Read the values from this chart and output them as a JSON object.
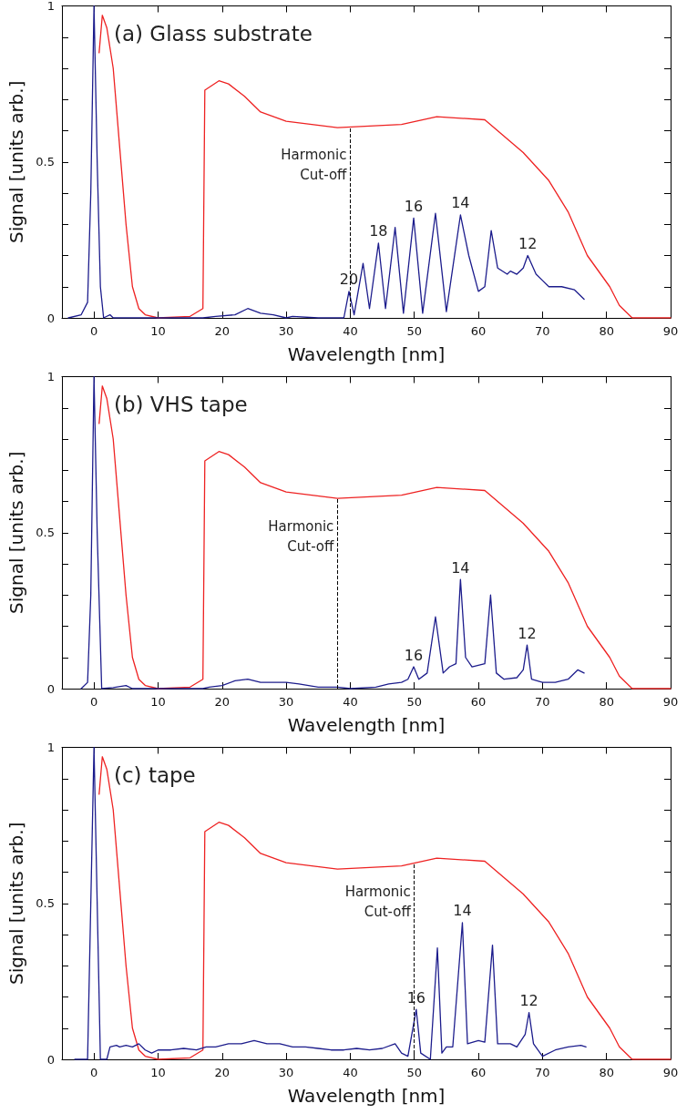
{
  "chart_data": [
    {
      "type": "line",
      "title": "(a) Glass substrate",
      "xlabel": "Wavelength [nm]",
      "ylabel": "Signal [units arb.]",
      "xlim": [
        -5,
        90
      ],
      "xticks": [
        0,
        10,
        20,
        30,
        40,
        50,
        60,
        70,
        80,
        90
      ],
      "ylim": [
        0,
        1
      ],
      "yticks": [
        0,
        {
          "value": 0.1,
          "label": null
        },
        {
          "value": 0.2,
          "label": null
        },
        {
          "value": 0.3,
          "label": null
        },
        {
          "value": 0.4,
          "label": null
        },
        0.5,
        {
          "value": 0.6,
          "label": null
        },
        {
          "value": 0.7,
          "label": null
        },
        {
          "value": 0.8,
          "label": null
        },
        {
          "value": 0.9,
          "label": null
        },
        1
      ],
      "marker": "none",
      "line_style": "solid",
      "series": [
        {
          "color": "#ee2222",
          "x": [
            0.8,
            1.3,
            2,
            3,
            4,
            5,
            6,
            7,
            8,
            10,
            15,
            17,
            17.3,
            19.5,
            21,
            23.5,
            26,
            30,
            38,
            48,
            53.5,
            61,
            63,
            67,
            71,
            74,
            77,
            80.5,
            82,
            84,
            90
          ],
          "values": [
            0.85,
            0.97,
            0.93,
            0.8,
            0.55,
            0.3,
            0.1,
            0.03,
            0.01,
            0,
            0.005,
            0.03,
            0.73,
            0.76,
            0.75,
            0.71,
            0.66,
            0.63,
            0.61,
            0.62,
            0.645,
            0.635,
            0.6,
            0.53,
            0.44,
            0.34,
            0.2,
            0.1,
            0.04,
            0,
            0
          ]
        },
        {
          "color": "#1c1c8c",
          "x": [
            -4,
            -2,
            -1,
            -0.5,
            0,
            0.5,
            1,
            1.5,
            2,
            2.5,
            3,
            17,
            19,
            22,
            24,
            26,
            28,
            30,
            31,
            35,
            39,
            39.8,
            40.6,
            42,
            43,
            44.4,
            45.5,
            47,
            48.3,
            49.9,
            51.3,
            53.3,
            55,
            57.2,
            58.5,
            60,
            61,
            62,
            63,
            64.5,
            65,
            66,
            67,
            67.7,
            69,
            70,
            71,
            72,
            73,
            75,
            76.5
          ],
          "values": [
            0,
            0.01,
            0.05,
            0.4,
            1,
            0.5,
            0.1,
            0,
            0.005,
            0.01,
            0,
            0,
            0.005,
            0.01,
            0.03,
            0.015,
            0.01,
            0,
            0.005,
            0,
            0,
            0.085,
            0.01,
            0.175,
            0.03,
            0.24,
            0.03,
            0.29,
            0.015,
            0.32,
            0.015,
            0.335,
            0.02,
            0.33,
            0.2,
            0.085,
            0.1,
            0.28,
            0.16,
            0.14,
            0.15,
            0.14,
            0.16,
            0.2,
            0.14,
            0.12,
            0.1,
            0.1,
            0.1,
            0.09,
            0.06
          ]
        }
      ],
      "ref_lines": [
        {
          "axis": "x",
          "value": 40,
          "label": "Harmonic\nCut-off",
          "line_style": "dashed",
          "color": "#000000"
        }
      ],
      "annotations": [
        {
          "text": "20",
          "x": 39.8,
          "y": 0.085
        },
        {
          "text": "18",
          "x": 44.4,
          "y": 0.24
        },
        {
          "text": "16",
          "x": 49.9,
          "y": 0.32
        },
        {
          "text": "14",
          "x": 57.2,
          "y": 0.33
        },
        {
          "text": "12",
          "x": 67.7,
          "y": 0.2
        }
      ]
    },
    {
      "type": "line",
      "title": "(b) VHS tape",
      "xlabel": "Wavelength [nm]",
      "ylabel": "Signal [units arb.]",
      "xlim": [
        -5,
        90
      ],
      "xticks": [
        0,
        10,
        20,
        30,
        40,
        50,
        60,
        70,
        80,
        90
      ],
      "ylim": [
        0,
        1
      ],
      "yticks": [
        0,
        {
          "value": 0.1,
          "label": null
        },
        {
          "value": 0.2,
          "label": null
        },
        {
          "value": 0.3,
          "label": null
        },
        {
          "value": 0.4,
          "label": null
        },
        0.5,
        {
          "value": 0.6,
          "label": null
        },
        {
          "value": 0.7,
          "label": null
        },
        {
          "value": 0.8,
          "label": null
        },
        {
          "value": 0.9,
          "label": null
        },
        1
      ],
      "marker": "none",
      "line_style": "solid",
      "series": [
        {
          "color": "#ee2222",
          "x": [
            0.8,
            1.3,
            2,
            3,
            4,
            5,
            6,
            7,
            8,
            10,
            15,
            17,
            17.3,
            19.5,
            21,
            23.5,
            26,
            30,
            38,
            48,
            53.5,
            61,
            63,
            67,
            71,
            74,
            77,
            80.5,
            82,
            84,
            90
          ],
          "values": [
            0.85,
            0.97,
            0.93,
            0.8,
            0.55,
            0.3,
            0.1,
            0.03,
            0.01,
            0,
            0.005,
            0.03,
            0.73,
            0.76,
            0.75,
            0.71,
            0.66,
            0.63,
            0.61,
            0.62,
            0.645,
            0.635,
            0.6,
            0.53,
            0.44,
            0.34,
            0.2,
            0.1,
            0.04,
            0,
            0
          ]
        },
        {
          "color": "#1c1c8c",
          "x": [
            -2,
            -1,
            -0.5,
            0,
            0.5,
            1.2,
            3,
            5,
            6,
            17,
            18,
            20,
            22,
            24,
            26,
            28,
            30,
            32,
            35,
            38,
            40,
            44,
            46,
            48,
            49,
            49.9,
            50.7,
            52,
            53.3,
            54.5,
            55.5,
            56.5,
            57.2,
            58,
            59,
            60,
            61,
            61.9,
            62.8,
            64,
            66,
            67,
            67.6,
            68.3,
            70,
            72,
            74,
            75.5,
            76.5
          ],
          "values": [
            0,
            0.02,
            0.3,
            1,
            0.5,
            0,
            0.003,
            0.01,
            0,
            0,
            0.005,
            0.01,
            0.025,
            0.03,
            0.02,
            0.02,
            0.02,
            0.015,
            0.005,
            0.005,
            0,
            0.005,
            0.015,
            0.02,
            0.03,
            0.07,
            0.03,
            0.05,
            0.23,
            0.05,
            0.07,
            0.08,
            0.35,
            0.1,
            0.07,
            0.075,
            0.08,
            0.3,
            0.05,
            0.03,
            0.035,
            0.06,
            0.14,
            0.03,
            0.02,
            0.02,
            0.03,
            0.06,
            0.05
          ]
        }
      ],
      "ref_lines": [
        {
          "axis": "x",
          "value": 38,
          "label": "Harmonic\nCut-off",
          "line_style": "dashed",
          "color": "#000000"
        }
      ],
      "annotations": [
        {
          "text": "16",
          "x": 49.9,
          "y": 0.07
        },
        {
          "text": "14",
          "x": 57.2,
          "y": 0.35
        },
        {
          "text": "12",
          "x": 67.6,
          "y": 0.14
        }
      ]
    },
    {
      "type": "line",
      "title": "(c) tape",
      "xlabel": "Wavelength [nm]",
      "ylabel": "Signal [units arb.]",
      "xlim": [
        -5,
        90
      ],
      "xticks": [
        0,
        10,
        20,
        30,
        40,
        50,
        60,
        70,
        80,
        90
      ],
      "ylim": [
        0,
        1
      ],
      "yticks": [
        0,
        {
          "value": 0.1,
          "label": null
        },
        {
          "value": 0.2,
          "label": null
        },
        {
          "value": 0.3,
          "label": null
        },
        {
          "value": 0.4,
          "label": null
        },
        0.5,
        {
          "value": 0.6,
          "label": null
        },
        {
          "value": 0.7,
          "label": null
        },
        {
          "value": 0.8,
          "label": null
        },
        {
          "value": 0.9,
          "label": null
        },
        1
      ],
      "marker": "none",
      "line_style": "solid",
      "series": [
        {
          "color": "#ee2222",
          "x": [
            0.8,
            1.3,
            2,
            3,
            4,
            5,
            6,
            7,
            8,
            10,
            15,
            17,
            17.3,
            19.5,
            21,
            23.5,
            26,
            30,
            38,
            48,
            53.5,
            61,
            63,
            67,
            71,
            74,
            77,
            80.5,
            82,
            84,
            90
          ],
          "values": [
            0.85,
            0.97,
            0.93,
            0.8,
            0.55,
            0.3,
            0.1,
            0.03,
            0.01,
            0,
            0.005,
            0.03,
            0.73,
            0.76,
            0.75,
            0.71,
            0.66,
            0.63,
            0.61,
            0.62,
            0.645,
            0.635,
            0.6,
            0.53,
            0.44,
            0.34,
            0.2,
            0.1,
            0.04,
            0,
            0
          ]
        },
        {
          "color": "#1c1c8c",
          "x": [
            -3,
            -1,
            -0.5,
            0,
            0.5,
            1,
            2,
            2.5,
            3.5,
            4,
            5,
            6,
            7,
            8,
            9,
            10,
            12,
            14,
            16,
            17.5,
            19,
            21,
            23,
            25,
            27,
            29,
            31,
            33,
            35,
            37,
            39,
            41,
            43,
            45,
            47,
            48,
            49,
            50.3,
            51,
            52.5,
            53.6,
            54.3,
            55,
            56,
            57.5,
            58.3,
            60,
            61,
            62.2,
            63,
            65,
            66,
            67.3,
            67.9,
            68.6,
            70,
            72,
            74,
            76,
            76.8
          ],
          "values": [
            0,
            0,
            0.5,
            1,
            0.5,
            0,
            0,
            0.04,
            0.045,
            0.04,
            0.045,
            0.04,
            0.05,
            0.03,
            0.02,
            0.03,
            0.03,
            0.035,
            0.03,
            0.04,
            0.04,
            0.05,
            0.05,
            0.06,
            0.05,
            0.05,
            0.04,
            0.04,
            0.035,
            0.03,
            0.03,
            0.035,
            0.03,
            0.035,
            0.05,
            0.02,
            0.01,
            0.16,
            0.02,
            0,
            0.357,
            0.02,
            0.04,
            0.04,
            0.438,
            0.05,
            0.06,
            0.055,
            0.366,
            0.05,
            0.05,
            0.04,
            0.08,
            0.15,
            0.05,
            0.01,
            0.03,
            0.04,
            0.045,
            0.04
          ]
        }
      ],
      "ref_lines": [
        {
          "axis": "x",
          "value": 50,
          "label": "Harmonic\nCut-off",
          "line_style": "dashed",
          "color": "#000000"
        }
      ],
      "annotations": [
        {
          "text": "16",
          "x": 50.3,
          "y": 0.16
        },
        {
          "text": "14",
          "x": 57.5,
          "y": 0.438
        },
        {
          "text": "12",
          "x": 67.9,
          "y": 0.15
        }
      ]
    }
  ]
}
